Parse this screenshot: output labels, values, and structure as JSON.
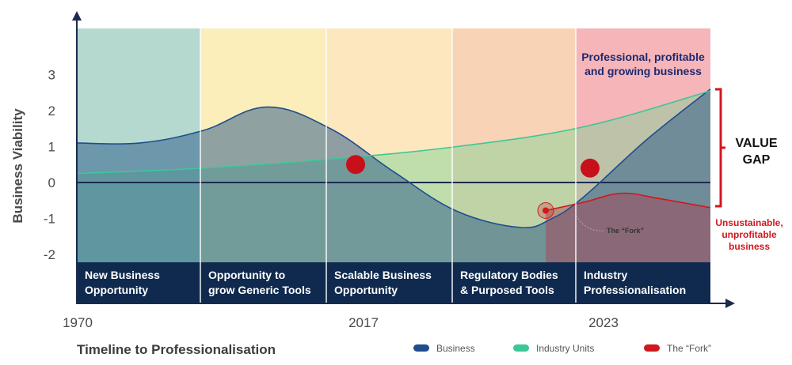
{
  "chart_data": {
    "type": "area",
    "ylabel": "Business Viability",
    "xlabel": "Timeline to Professionalisation",
    "ylim": [
      -2.2,
      4.2
    ],
    "y_ticks": [
      "3",
      "2",
      "1",
      "0",
      "-1",
      "-2"
    ],
    "x_ticks": [
      "1970",
      "2017",
      "2023"
    ],
    "phases": [
      {
        "label_line1": "New Business",
        "label_line2": "Opportunity",
        "color": "#b6d9cf"
      },
      {
        "label_line1": "Opportunity to",
        "label_line2": "grow Generic Tools",
        "color": "#fbeebb"
      },
      {
        "label_line1": "Scalable Business",
        "label_line2": "Opportunity",
        "color": "#fce7be"
      },
      {
        "label_line1": "Regulatory Bodies",
        "label_line2": "& Purposed Tools",
        "color": "#f9d3b5"
      },
      {
        "label_line1": "Industry",
        "label_line2": "Professionalisation",
        "color": "#f6b5b9"
      }
    ],
    "series": [
      {
        "name": "Business",
        "color": "#1f4e8c",
        "x": [
          0,
          0.1,
          0.2,
          0.3,
          0.4,
          0.5,
          0.6,
          0.7,
          0.75,
          0.8,
          0.9,
          1.0
        ],
        "values": [
          1.1,
          1.1,
          1.45,
          2.1,
          1.5,
          0.3,
          -0.8,
          -1.25,
          -1.0,
          -0.4,
          1.2,
          2.6
        ]
      },
      {
        "name": "Industry Units",
        "color": "#3dc796",
        "x": [
          0,
          0.2,
          0.4,
          0.6,
          0.8,
          1.0
        ],
        "values": [
          0.25,
          0.4,
          0.65,
          1.0,
          1.55,
          2.55
        ]
      },
      {
        "name": "The “Fork”",
        "color": "#d0181f",
        "x": [
          0.74,
          0.8,
          0.86,
          0.92,
          1.0
        ],
        "values": [
          -0.78,
          -0.55,
          -0.3,
          -0.45,
          -0.7
        ]
      }
    ],
    "markers": [
      {
        "x": 0.44,
        "y": 0.5
      },
      {
        "x": 0.74,
        "y": -0.78
      },
      {
        "x": 0.81,
        "y": 0.4
      }
    ],
    "annotations": {
      "top_line1": "Professional, profitable",
      "top_line2": "and growing business",
      "gap_line1": "VALUE",
      "gap_line2": "GAP",
      "red_line1": "Unsustainable,",
      "red_line2": "unprofitable",
      "red_line3": "business",
      "fork_label": "The “Fork”"
    },
    "legend": [
      {
        "name": "Business",
        "color": "#1f4e8c"
      },
      {
        "name": "Industry Units",
        "color": "#3dc796"
      },
      {
        "name": "The “Fork”",
        "color": "#d0181f"
      }
    ]
  }
}
